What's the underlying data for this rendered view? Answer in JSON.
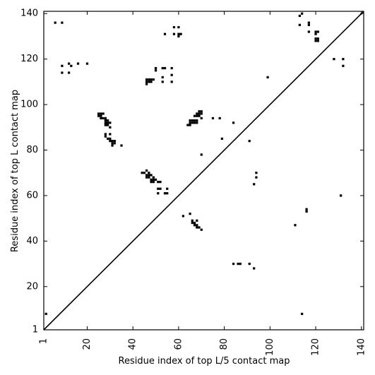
{
  "chart_data": {
    "type": "scatter",
    "title": "",
    "xlabel": "Residue index of top L/5 contact map",
    "ylabel": "Residue index of top L contact map",
    "xlim": [
      1,
      141
    ],
    "ylim": [
      1,
      141
    ],
    "xticks": [
      1,
      20,
      40,
      60,
      80,
      100,
      120,
      140
    ],
    "yticks": [
      1,
      20,
      40,
      60,
      80,
      100,
      120,
      140
    ],
    "diagonal": true,
    "grid": false,
    "marker": "square",
    "color": "#000000",
    "points": [
      [
        2,
        8
      ],
      [
        6,
        136
      ],
      [
        9,
        136
      ],
      [
        9,
        117
      ],
      [
        9,
        114
      ],
      [
        12,
        118
      ],
      [
        12,
        114
      ],
      [
        13,
        117
      ],
      [
        16,
        118
      ],
      [
        20,
        118
      ],
      [
        25,
        96
      ],
      [
        26,
        96
      ],
      [
        27,
        96
      ],
      [
        25,
        95
      ],
      [
        26,
        95
      ],
      [
        26,
        94
      ],
      [
        27,
        94
      ],
      [
        28,
        94
      ],
      [
        28,
        93
      ],
      [
        29,
        93
      ],
      [
        28,
        92
      ],
      [
        29,
        92
      ],
      [
        30,
        92
      ],
      [
        28,
        91
      ],
      [
        29,
        91
      ],
      [
        30,
        90
      ],
      [
        28,
        87
      ],
      [
        28,
        86
      ],
      [
        30,
        87
      ],
      [
        29,
        85
      ],
      [
        30,
        85
      ],
      [
        30,
        84
      ],
      [
        31,
        84
      ],
      [
        32,
        84
      ],
      [
        31,
        83
      ],
      [
        32,
        83
      ],
      [
        31,
        82
      ],
      [
        35,
        82
      ],
      [
        44,
        70
      ],
      [
        45,
        70
      ],
      [
        46,
        71
      ],
      [
        47,
        70
      ],
      [
        46,
        69
      ],
      [
        47,
        69
      ],
      [
        48,
        69
      ],
      [
        46,
        68
      ],
      [
        47,
        68
      ],
      [
        49,
        68
      ],
      [
        48,
        67
      ],
      [
        49,
        67
      ],
      [
        50,
        67
      ],
      [
        48,
        66
      ],
      [
        49,
        66
      ],
      [
        51,
        66
      ],
      [
        52,
        66
      ],
      [
        51,
        63
      ],
      [
        52,
        63
      ],
      [
        55,
        63
      ],
      [
        51,
        61
      ],
      [
        54,
        61
      ],
      [
        55,
        61
      ],
      [
        46,
        111
      ],
      [
        47,
        111
      ],
      [
        48,
        111
      ],
      [
        49,
        111
      ],
      [
        46,
        110
      ],
      [
        47,
        110
      ],
      [
        48,
        110
      ],
      [
        46,
        109
      ],
      [
        50,
        116
      ],
      [
        50,
        115
      ],
      [
        53,
        116
      ],
      [
        54,
        116
      ],
      [
        53,
        112
      ],
      [
        53,
        110
      ],
      [
        57,
        116
      ],
      [
        57,
        113
      ],
      [
        57,
        110
      ],
      [
        54,
        131
      ],
      [
        58,
        134
      ],
      [
        58,
        131
      ],
      [
        60,
        134
      ],
      [
        60,
        131
      ],
      [
        61,
        131
      ],
      [
        60,
        130
      ],
      [
        62,
        51
      ],
      [
        65,
        52
      ],
      [
        66,
        49
      ],
      [
        66,
        48
      ],
      [
        67,
        48
      ],
      [
        68,
        49
      ],
      [
        67,
        47
      ],
      [
        68,
        47
      ],
      [
        68,
        46
      ],
      [
        69,
        46
      ],
      [
        70,
        45
      ],
      [
        64,
        91
      ],
      [
        65,
        91
      ],
      [
        65,
        92
      ],
      [
        66,
        92
      ],
      [
        67,
        92
      ],
      [
        68,
        92
      ],
      [
        65,
        93
      ],
      [
        66,
        93
      ],
      [
        67,
        93
      ],
      [
        68,
        93
      ],
      [
        67,
        95
      ],
      [
        68,
        95
      ],
      [
        69,
        95
      ],
      [
        68,
        96
      ],
      [
        69,
        96
      ],
      [
        70,
        96
      ],
      [
        69,
        97
      ],
      [
        70,
        97
      ],
      [
        70,
        94
      ],
      [
        70,
        78
      ],
      [
        75,
        94
      ],
      [
        78,
        94
      ],
      [
        79,
        85
      ],
      [
        84,
        92
      ],
      [
        91,
        84
      ],
      [
        84,
        30
      ],
      [
        86,
        30
      ],
      [
        87,
        30
      ],
      [
        91,
        30
      ],
      [
        93,
        28
      ],
      [
        93,
        65
      ],
      [
        94,
        68
      ],
      [
        94,
        70
      ],
      [
        99,
        112
      ],
      [
        111,
        47
      ],
      [
        114,
        8
      ],
      [
        116,
        54
      ],
      [
        116,
        53
      ],
      [
        113,
        139
      ],
      [
        114,
        140
      ],
      [
        113,
        135
      ],
      [
        117,
        136
      ],
      [
        117,
        135
      ],
      [
        117,
        132
      ],
      [
        120,
        132
      ],
      [
        121,
        132
      ],
      [
        120,
        131
      ],
      [
        120,
        129
      ],
      [
        121,
        129
      ],
      [
        120,
        128
      ],
      [
        121,
        128
      ],
      [
        128,
        120
      ],
      [
        132,
        120
      ],
      [
        132,
        117
      ],
      [
        131,
        60
      ]
    ]
  }
}
